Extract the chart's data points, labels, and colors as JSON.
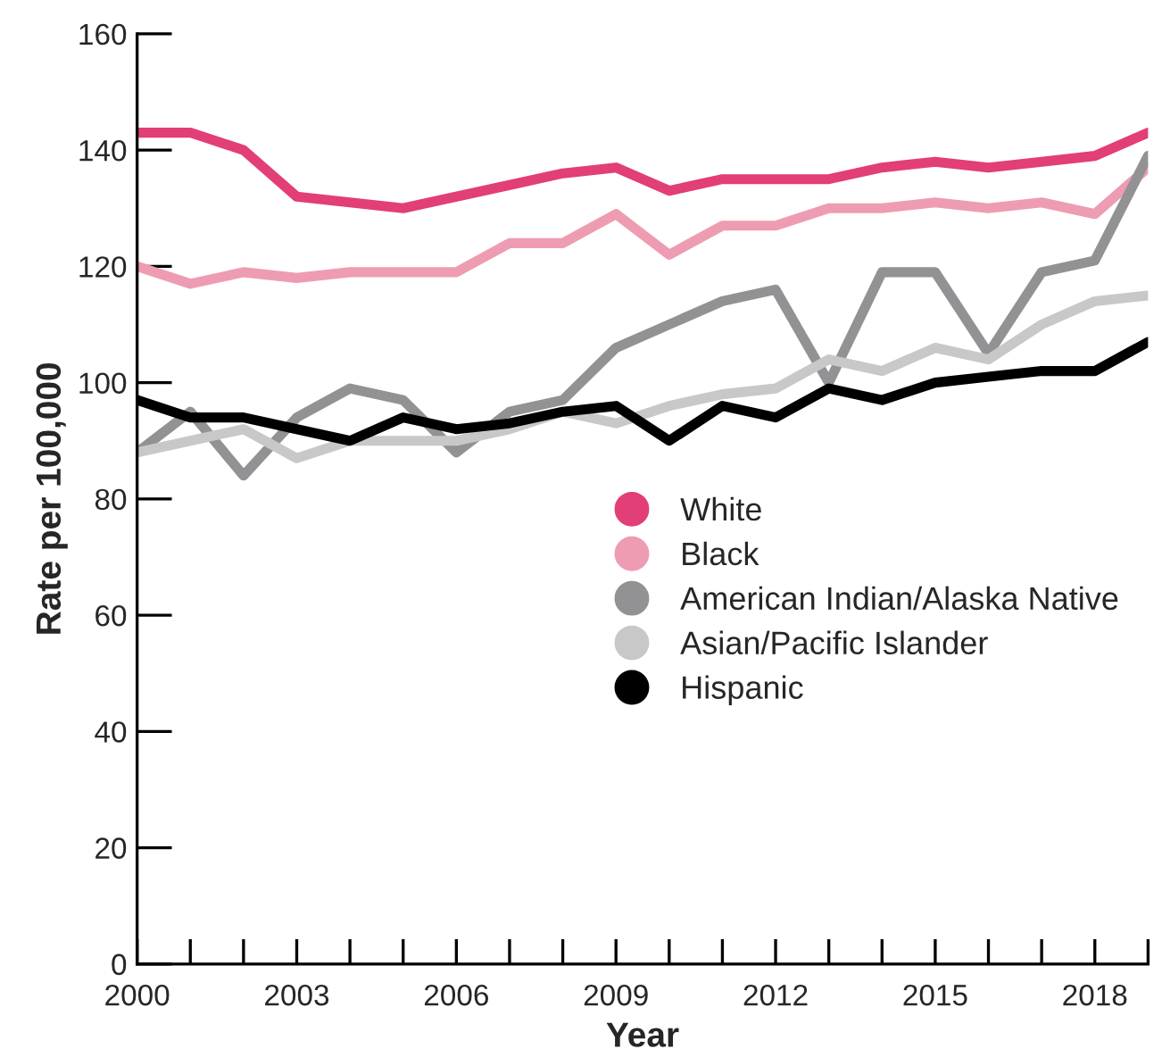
{
  "chart_data": {
    "type": "line",
    "xlabel": "Year",
    "ylabel": "Rate per 100,000",
    "x": [
      2000,
      2001,
      2002,
      2003,
      2004,
      2005,
      2006,
      2007,
      2008,
      2009,
      2010,
      2011,
      2012,
      2013,
      2014,
      2015,
      2016,
      2017,
      2018,
      2019
    ],
    "series": [
      {
        "name": "White",
        "color": "#e23e78",
        "values": [
          143,
          143,
          140,
          132,
          131,
          130,
          132,
          134,
          136,
          137,
          133,
          135,
          135,
          135,
          137,
          138,
          137,
          138,
          139,
          143
        ]
      },
      {
        "name": "Black",
        "color": "#ee9cb1",
        "values": [
          120,
          117,
          119,
          118,
          119,
          119,
          119,
          124,
          124,
          129,
          122,
          127,
          127,
          130,
          130,
          131,
          130,
          131,
          129,
          137
        ]
      },
      {
        "name": "American Indian/Alaska Native",
        "color": "#929295",
        "values": [
          88,
          95,
          84,
          94,
          99,
          97,
          88,
          95,
          97,
          106,
          110,
          114,
          116,
          100,
          119,
          119,
          105,
          119,
          121,
          139
        ]
      },
      {
        "name": "Asian/Pacific Islander",
        "color": "#c8c8c8",
        "values": [
          88,
          90,
          92,
          87,
          90,
          90,
          90,
          92,
          95,
          93,
          96,
          98,
          99,
          104,
          102,
          106,
          104,
          110,
          114,
          115
        ]
      },
      {
        "name": "Hispanic",
        "color": "#000000",
        "values": [
          97,
          94,
          94,
          92,
          90,
          94,
          92,
          93,
          95,
          96,
          90,
          96,
          94,
          99,
          97,
          100,
          101,
          102,
          102,
          107
        ]
      }
    ],
    "xlim": [
      2000,
      2019
    ],
    "ylim": [
      0,
      160
    ],
    "xticks": [
      2000,
      {
        "value": 2001,
        "label": null
      },
      {
        "value": 2002,
        "label": null
      },
      2003,
      {
        "value": 2004,
        "label": null
      },
      {
        "value": 2005,
        "label": null
      },
      2006,
      {
        "value": 2007,
        "label": null
      },
      {
        "value": 2008,
        "label": null
      },
      2009,
      {
        "value": 2010,
        "label": null
      },
      {
        "value": 2011,
        "label": null
      },
      2012,
      {
        "value": 2013,
        "label": null
      },
      {
        "value": 2014,
        "label": null
      },
      2015,
      {
        "value": 2016,
        "label": null
      },
      {
        "value": 2017,
        "label": null
      },
      2018,
      {
        "value": 2019,
        "label": null
      }
    ],
    "yticks": [
      0,
      20,
      40,
      60,
      80,
      100,
      120,
      140,
      160
    ],
    "legend": "center right",
    "grid": false,
    "marker": "none",
    "line_style": "solid"
  }
}
